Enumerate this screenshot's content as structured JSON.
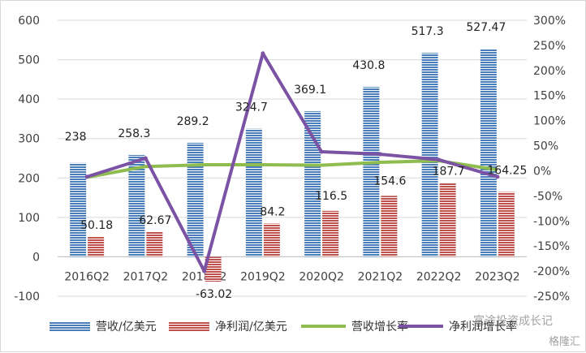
{
  "chart_data": {
    "type": "bar",
    "categories": [
      "2016Q2",
      "2017Q2",
      "2018Q2",
      "2019Q2",
      "2020Q2",
      "2021Q2",
      "2022Q2",
      "2023Q2"
    ],
    "series": [
      {
        "name": "营收/亿美元",
        "type": "bar",
        "axis": "left",
        "color": "#4a7ebb",
        "values": [
          238,
          258.3,
          289.2,
          324.7,
          369.1,
          430.8,
          517.3,
          527.47
        ],
        "labels": [
          "238",
          "258.3",
          "289.2",
          "324.7",
          "369.1",
          "430.8",
          "517.3",
          "527.47"
        ]
      },
      {
        "name": "净利润/亿美元",
        "type": "bar",
        "axis": "left",
        "color": "#c0504d",
        "values": [
          50.18,
          62.67,
          -63.02,
          84.2,
          116.5,
          154.6,
          187.7,
          164.25
        ],
        "labels": [
          "50.18",
          "62.67",
          "-63.02",
          "84.2",
          "116.5",
          "154.6",
          "187.7",
          "164.25"
        ]
      },
      {
        "name": "营收增长率",
        "type": "line",
        "axis": "right",
        "color": "#8fbc4f",
        "values": [
          -0.13,
          0.085,
          0.12,
          0.12,
          0.11,
          0.17,
          0.2,
          0.02
        ]
      },
      {
        "name": "净利润增长率",
        "type": "line",
        "axis": "right",
        "color": "#7b52a4",
        "values": [
          -0.12,
          0.25,
          -2.0,
          2.34,
          0.38,
          0.33,
          0.22,
          -0.12
        ]
      }
    ],
    "left_axis": {
      "ylim": [
        -100,
        600
      ],
      "ticks": [
        "-100",
        "0",
        "100",
        "200",
        "300",
        "400",
        "500",
        "600"
      ]
    },
    "right_axis": {
      "ylim": [
        -2.5,
        3.0
      ],
      "ticks": [
        "-250%",
        "-200%",
        "-150%",
        "-100%",
        "-50%",
        "0%",
        "50%",
        "100%",
        "150%",
        "200%",
        "250%",
        "300%"
      ]
    },
    "legend": {
      "position": "bottom"
    },
    "grid": true
  },
  "watermark": "富途投资成长记",
  "watermark_brand": "格隆汇"
}
